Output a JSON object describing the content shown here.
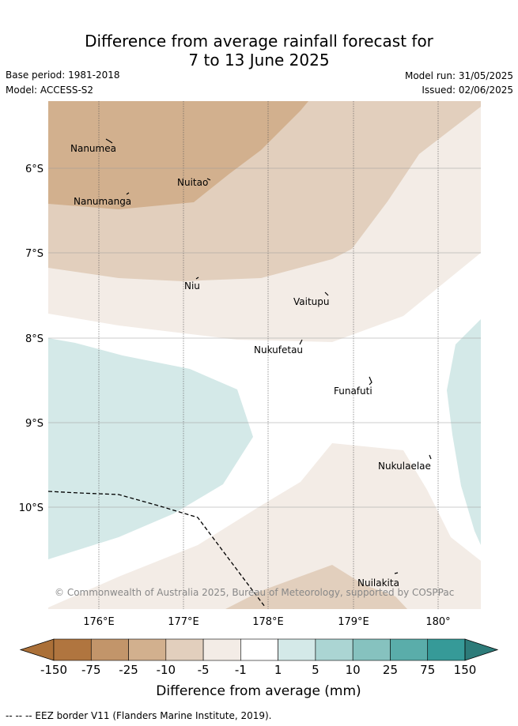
{
  "title": {
    "line1": "Difference from average rainfall forecast for",
    "line2": "7 to 13 June 2025"
  },
  "info": {
    "base_period": "Base period: 1981-2018",
    "model": "Model: ACCESS-S2",
    "model_run": "Model run: 31/05/2025",
    "issued": "Issued: 02/06/2025"
  },
  "map": {
    "lat_ticks": [
      "6°S",
      "7°S",
      "8°S",
      "9°S",
      "10°S"
    ],
    "lon_ticks": [
      "176°E",
      "177°E",
      "178°E",
      "179°E",
      "180°"
    ],
    "islands": [
      "Nanumea",
      "Nuitao",
      "Nanumanga",
      "Niu",
      "Vaitupu",
      "Nukufetau",
      "Funafuti",
      "Nukulaelae",
      "Nuilakita"
    ],
    "copyright": "© Commonwealth of Australia 2025, Bureau of Meteorology, supported by COSPPac"
  },
  "colorbar": {
    "ticks": [
      "-150",
      "-75",
      "-25",
      "-10",
      "-5",
      "-1",
      "1",
      "5",
      "10",
      "25",
      "75",
      "150"
    ],
    "colors": [
      "#ab7038",
      "#b0753f",
      "#c2956a",
      "#d2b08e",
      "#e2cfbd",
      "#f3ece6",
      "#ffffff",
      "#d4e9e8",
      "#abd5d3",
      "#86c2bf",
      "#5aadaa",
      "#369a98",
      "#2d7b79"
    ],
    "label": "Difference from average (mm)"
  },
  "footnote": "-- -- -- EEZ border V11 (Flanders Marine Institute, 2019)."
}
